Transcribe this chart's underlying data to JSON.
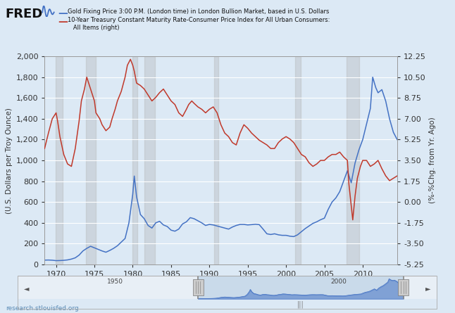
{
  "legend_blue": "Gold Fixing Price 3:00 P.M. (London time) in London Bullion Market, based in U.S. Dollars",
  "legend_red_line1": "10-Year Treasury Constant Maturity Rate-Consumer Price Index for All Urban Consumers:",
  "legend_red_line2": "   All Items (right)",
  "ylabel_left": "(U.S. Dollars per Troy Ounce)",
  "ylabel_right": "(%-%Chg. from Yr. Ago)",
  "watermark": "research.stlouisfed.org",
  "bg_color": "#dce9f5",
  "plot_bg": "#dce9f5",
  "grid_color": "#ffffff",
  "blue_color": "#4472c4",
  "red_color": "#c0392b",
  "ylim_left": [
    0,
    2000
  ],
  "ylim_right": [
    -5.25,
    12.25
  ],
  "yticks_left": [
    0,
    200,
    400,
    600,
    800,
    1000,
    1200,
    1400,
    1600,
    1800,
    2000
  ],
  "yticks_right": [
    -5.25,
    -3.5,
    -1.75,
    0.0,
    1.75,
    3.5,
    5.25,
    7.0,
    8.75,
    10.5,
    12.25
  ],
  "xlim": [
    1968.5,
    2014.5
  ],
  "xticks": [
    1970,
    1975,
    1980,
    1985,
    1990,
    1995,
    2000,
    2005,
    2010
  ],
  "recession_bands": [
    [
      1969.9,
      1970.9
    ],
    [
      1973.9,
      1975.2
    ],
    [
      1980.0,
      1980.6
    ],
    [
      1981.5,
      1982.9
    ],
    [
      1990.6,
      1991.2
    ],
    [
      2001.2,
      2001.9
    ],
    [
      2007.9,
      2009.5
    ]
  ],
  "gold_x": [
    1968.5,
    1969,
    1969.5,
    1970,
    1970.5,
    1971,
    1971.5,
    1972,
    1972.5,
    1973,
    1973.5,
    1974,
    1974.5,
    1975,
    1975.5,
    1976,
    1976.5,
    1977,
    1977.5,
    1978,
    1978.5,
    1979,
    1979.5,
    1980,
    1980.2,
    1980.5,
    1981,
    1981.5,
    1982,
    1982.5,
    1983,
    1983.5,
    1984,
    1984.5,
    1985,
    1985.5,
    1986,
    1986.5,
    1987,
    1987.5,
    1988,
    1988.5,
    1989,
    1989.5,
    1990,
    1990.5,
    1991,
    1991.5,
    1992,
    1992.5,
    1993,
    1993.5,
    1994,
    1994.5,
    1995,
    1995.5,
    1996,
    1996.5,
    1997,
    1997.5,
    1998,
    1998.5,
    1999,
    1999.5,
    2000,
    2000.5,
    2001,
    2001.5,
    2002,
    2002.5,
    2003,
    2003.5,
    2004,
    2004.5,
    2005,
    2005.5,
    2006,
    2006.5,
    2007,
    2007.5,
    2008,
    2008.5,
    2009,
    2009.5,
    2010,
    2010.5,
    2011,
    2011.3,
    2011.7,
    2012,
    2012.5,
    2013,
    2013.5,
    2014,
    2014.5
  ],
  "gold_y": [
    42,
    43,
    41,
    37,
    38,
    40,
    44,
    52,
    64,
    90,
    130,
    155,
    175,
    160,
    145,
    130,
    118,
    135,
    155,
    180,
    215,
    250,
    400,
    675,
    850,
    650,
    480,
    440,
    375,
    350,
    400,
    415,
    380,
    365,
    330,
    320,
    340,
    390,
    410,
    450,
    440,
    420,
    400,
    375,
    385,
    380,
    370,
    360,
    350,
    340,
    360,
    375,
    385,
    385,
    380,
    383,
    387,
    383,
    340,
    295,
    288,
    295,
    285,
    280,
    280,
    272,
    268,
    285,
    315,
    345,
    370,
    395,
    410,
    430,
    445,
    530,
    600,
    640,
    700,
    800,
    900,
    785,
    975,
    1100,
    1200,
    1350,
    1500,
    1800,
    1700,
    1650,
    1680,
    1570,
    1400,
    1270,
    1200
  ],
  "tips_x": [
    1968.5,
    1969,
    1969.5,
    1970,
    1970.2,
    1970.5,
    1971,
    1971.5,
    1972,
    1972.5,
    1973,
    1973.3,
    1973.7,
    1974,
    1974.5,
    1975,
    1975.2,
    1975.7,
    1976,
    1976.5,
    1977,
    1977.3,
    1977.7,
    1978,
    1978.5,
    1979,
    1979.3,
    1979.7,
    1980,
    1980.2,
    1980.5,
    1981,
    1981.5,
    1982,
    1982.5,
    1983,
    1983.5,
    1984,
    1984.5,
    1985,
    1985.5,
    1986,
    1986.5,
    1987,
    1987.3,
    1987.7,
    1988,
    1988.5,
    1989,
    1989.5,
    1990,
    1990.5,
    1991,
    1991.5,
    1992,
    1992.5,
    1993,
    1993.5,
    1994,
    1994.5,
    1995,
    1995.5,
    1996,
    1996.5,
    1997,
    1997.5,
    1998,
    1998.5,
    1999,
    1999.5,
    2000,
    2000.5,
    2001,
    2001.5,
    2002,
    2002.5,
    2003,
    2003.5,
    2004,
    2004.5,
    2005,
    2005.5,
    2006,
    2006.5,
    2007,
    2007.5,
    2008,
    2008.2,
    2008.7,
    2009,
    2009.3,
    2009.7,
    2010,
    2010.5,
    2011,
    2011.5,
    2012,
    2012.5,
    2013,
    2013.5,
    2014,
    2014.5
  ],
  "tips_y": [
    4.5,
    5.8,
    7.0,
    7.5,
    6.8,
    5.5,
    4.0,
    3.2,
    3.0,
    4.5,
    6.8,
    8.5,
    9.5,
    10.5,
    9.5,
    8.5,
    7.5,
    7.0,
    6.5,
    6.0,
    6.3,
    7.0,
    7.8,
    8.5,
    9.3,
    10.5,
    11.5,
    12.0,
    11.5,
    11.0,
    10.0,
    9.8,
    9.5,
    9.0,
    8.5,
    8.8,
    9.2,
    9.5,
    9.0,
    8.5,
    8.2,
    7.5,
    7.2,
    7.8,
    8.2,
    8.5,
    8.3,
    8.0,
    7.8,
    7.5,
    7.8,
    8.0,
    7.5,
    6.5,
    5.8,
    5.5,
    5.0,
    4.8,
    5.8,
    6.5,
    6.2,
    5.8,
    5.5,
    5.2,
    5.0,
    4.8,
    4.5,
    4.5,
    5.0,
    5.3,
    5.5,
    5.3,
    5.0,
    4.5,
    4.0,
    3.8,
    3.3,
    3.0,
    3.2,
    3.5,
    3.5,
    3.8,
    4.0,
    4.0,
    4.2,
    3.8,
    3.5,
    1.5,
    -1.5,
    0.5,
    2.0,
    3.0,
    3.5,
    3.5,
    3.0,
    3.2,
    3.5,
    2.8,
    2.2,
    1.8,
    2.0,
    2.2
  ],
  "nav_xlim": [
    1928,
    2022
  ],
  "nav_selected": [
    1968.5,
    2014.5
  ]
}
